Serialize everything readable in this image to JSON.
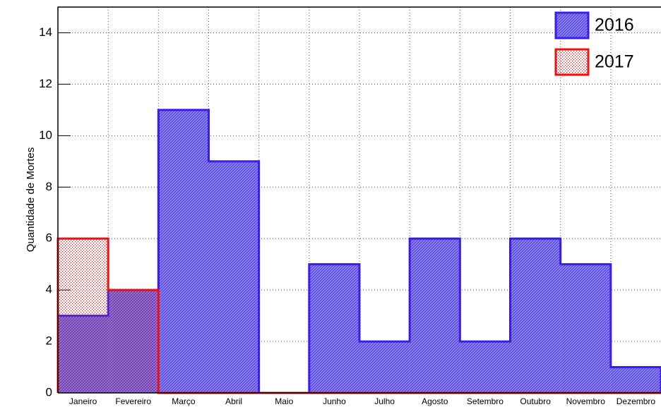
{
  "chart_data": {
    "type": "histogram",
    "y_label": "Quantidade de Mortes",
    "categories": [
      "Janeiro",
      "Fevereiro",
      "Março",
      "Abril",
      "Maio",
      "Junho",
      "Julho",
      "Agosto",
      "Setembro",
      "Outubro",
      "Novembro",
      "Dezembro"
    ],
    "series": [
      {
        "name": "2016",
        "color": "#3b1cf0",
        "values": [
          3,
          4,
          11,
          9,
          0,
          5,
          2,
          6,
          2,
          6,
          5,
          1
        ]
      },
      {
        "name": "2017",
        "color": "#f01010",
        "values": [
          6,
          4,
          0,
          0,
          0,
          0,
          0,
          0,
          0,
          0,
          0,
          0
        ]
      }
    ],
    "ylim": [
      0,
      15
    ],
    "yticks": [
      0,
      2,
      4,
      6,
      8,
      10,
      12,
      14
    ],
    "grid": true,
    "legend": "top-right"
  }
}
